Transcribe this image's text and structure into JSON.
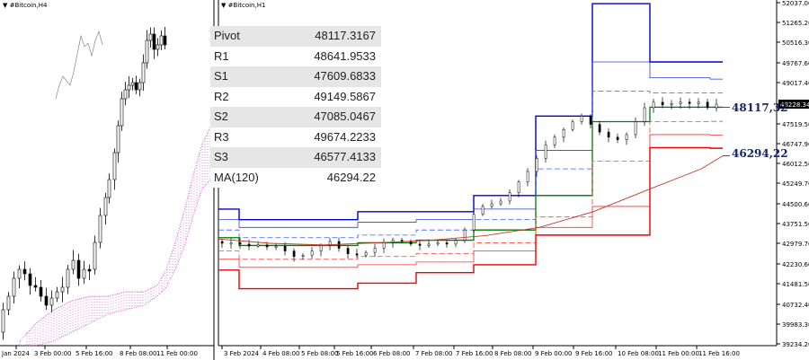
{
  "left_chart": {
    "title": "#Bitcoin,H4",
    "xticks": [
      "Jan 2024",
      "3 Feb 00:00",
      "5 Feb 16:00",
      "8 Feb 08:00",
      "11 Feb 00:00"
    ]
  },
  "right_chart": {
    "title": "#Bitcoin,H1",
    "xticks": [
      "3 Feb 2024",
      "4 Feb 08:00",
      "5 Feb 08:00",
      "5 Feb 16:00",
      "6 Feb 08:00",
      "7 Feb 08:00",
      "7 Feb 16:00",
      "8 Feb 08:00",
      "9 Feb 00:00",
      "9 Feb 16:00",
      "10 Feb 08:00",
      "11 Feb 00:00",
      "11 Feb 16:00"
    ],
    "yticks": [
      "52037.00",
      "51265.20",
      "50516.30",
      "49767.60",
      "49017.40",
      "48228.34",
      "47519.50",
      "46747.90",
      "46012.50",
      "45249.70",
      "44500.60",
      "43751.50",
      "42979.70",
      "42230.60",
      "41481.50",
      "40732.40",
      "39983.30",
      "39234.20"
    ],
    "price_tag": "48228.34",
    "callouts": [
      "48117,32",
      "46294,22"
    ]
  },
  "pivot_table": [
    {
      "name": "Pivot",
      "value": "48117.3167"
    },
    {
      "name": "R1",
      "value": "48641.9533"
    },
    {
      "name": "S1",
      "value": "47609.6833"
    },
    {
      "name": "R2",
      "value": "49149.5867"
    },
    {
      "name": "S2",
      "value": "47085.0467"
    },
    {
      "name": "R3",
      "value": "49674.2233"
    },
    {
      "name": "S3",
      "value": "46577.4133"
    },
    {
      "name": "MA(120)",
      "value": "46294.22"
    }
  ],
  "chart_data": [
    {
      "type": "line",
      "title": "#Bitcoin,H4",
      "x": [
        "Jan 2024",
        "3 Feb 00:00",
        "5 Feb 16:00",
        "8 Feb 08:00",
        "11 Feb 00:00"
      ],
      "series": [],
      "note_price": [
        39300,
        42100,
        42900,
        44800,
        48400
      ]
    },
    {
      "type": "line",
      "title": "#Bitcoin,H1",
      "x": [
        "3 Feb 2024",
        "4 Feb 08:00",
        "5 Feb 08:00",
        "5 Feb 16:00",
        "6 Feb 08:00",
        "7 Feb 08:00",
        "7 Feb 16:00",
        "8 Feb 08:00",
        "9 Feb 00:00",
        "9 Feb 16:00",
        "10 Feb 08:00",
        "11 Feb 00:00",
        "11 Feb 16:00"
      ],
      "ylim": [
        39234.2,
        52037.0
      ],
      "series": [
        {
          "values": [
            43000,
            42950,
            42800,
            43000,
            42880,
            42950,
            43300,
            45000,
            46500,
            48300,
            47900,
            48350,
            48228
          ]
        },
        {
          "name": "MA(120)",
          "values": [
            42800,
            42850,
            42900,
            42950,
            43050,
            43200,
            43300,
            43600,
            44200,
            44900,
            45500,
            46000,
            46294
          ]
        }
      ]
    }
  ]
}
